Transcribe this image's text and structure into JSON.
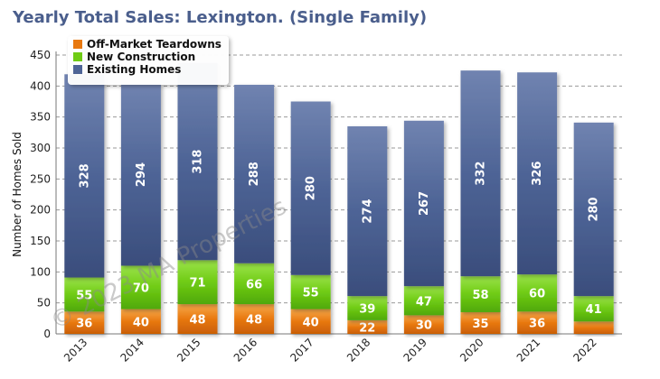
{
  "chart_data": {
    "type": "bar",
    "stacked": true,
    "title": "Yearly Total Sales: Lexington. (Single Family)",
    "xlabel": "",
    "ylabel": "Number of Homes Sold",
    "ylim": [
      0,
      450
    ],
    "yticks": [
      0,
      50,
      100,
      150,
      200,
      250,
      300,
      350,
      400,
      450
    ],
    "grid": true,
    "legend_position": "top-left",
    "categories": [
      "2013",
      "2014",
      "2015",
      "2016",
      "2017",
      "2018",
      "2019",
      "2020",
      "2021",
      "2022"
    ],
    "series": [
      {
        "name": "Off-Market Teardowns",
        "color": "#e8780f",
        "values": [
          36,
          40,
          48,
          48,
          40,
          22,
          30,
          35,
          36,
          20
        ]
      },
      {
        "name": "New Construction",
        "color": "#6fcb14",
        "values": [
          55,
          70,
          71,
          66,
          55,
          39,
          47,
          58,
          60,
          41
        ]
      },
      {
        "name": "Existing Homes",
        "color": "#4e6496",
        "values": [
          328,
          294,
          318,
          288,
          280,
          274,
          267,
          332,
          326,
          280
        ]
      }
    ],
    "data_labels": [
      [
        "36",
        "40",
        "48",
        "48",
        "40",
        "22",
        "30",
        "35",
        "36",
        ""
      ],
      [
        "55",
        "70",
        "71",
        "66",
        "55",
        "39",
        "47",
        "58",
        "60",
        "41"
      ],
      [
        "328",
        "294",
        "318",
        "288",
        "280",
        "274",
        "267",
        "332",
        "326",
        "280"
      ]
    ],
    "watermark": "© 2023 MA Properties"
  }
}
